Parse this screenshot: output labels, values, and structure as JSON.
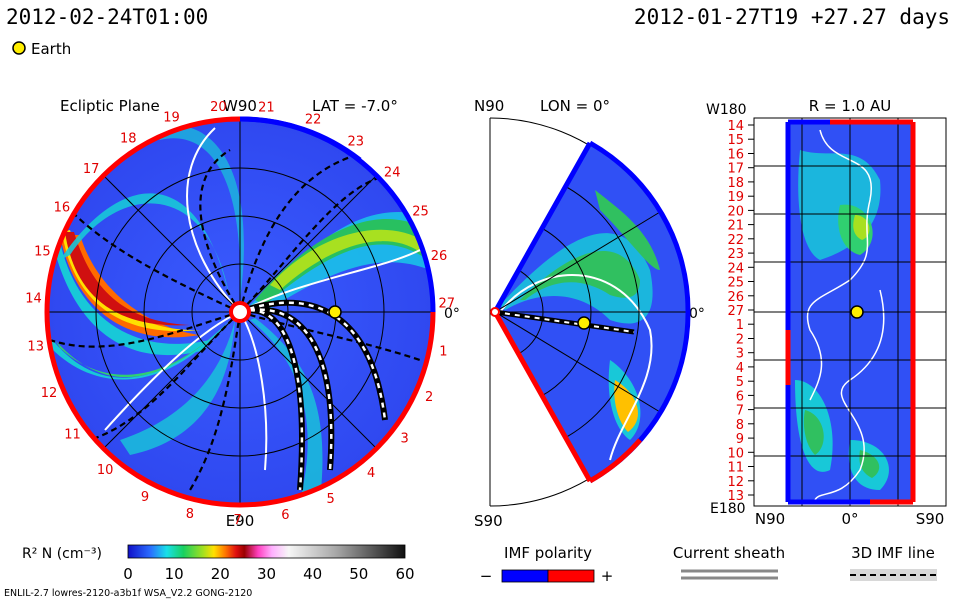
{
  "header": {
    "datetime": "2012-02-24T01:00",
    "run_info": "2012-01-27T19 +27.27 days",
    "earth_legend": "Earth"
  },
  "colors": {
    "earth_marker": "#ffee00",
    "polarity_negative": "#0000ff",
    "polarity_positive": "#ff0000"
  },
  "chart_data": [
    {
      "type": "heatmap",
      "title": "Ecliptic Plane",
      "lat_label": "LAT = -7.0°",
      "top_label": "W90",
      "bottom_label": "E90",
      "right_label": "0°",
      "carrington_ticks": [
        "20",
        "21",
        "22",
        "23",
        "24",
        "25",
        "26",
        "27",
        "1",
        "2",
        "3",
        "4",
        "5",
        "6",
        "7",
        "8",
        "9",
        "10",
        "11",
        "12",
        "13",
        "14",
        "15",
        "16",
        "17",
        "18",
        "19"
      ],
      "earth_marker": true
    },
    {
      "type": "heatmap",
      "title": "LON = 0°",
      "top_label": "N90",
      "bottom_label": "S90",
      "right_label": "0°",
      "earth_marker": true
    },
    {
      "type": "heatmap",
      "title": "R = 1.0 AU",
      "top_left_label": "W180",
      "bottom_left_label": "E180",
      "x_ticks": [
        "N90",
        "0°",
        "S90"
      ],
      "y_ticks": [
        "14",
        "15",
        "16",
        "17",
        "18",
        "19",
        "20",
        "21",
        "22",
        "23",
        "24",
        "25",
        "26",
        "27",
        "1",
        "2",
        "3",
        "4",
        "5",
        "6",
        "7",
        "8",
        "9",
        "10",
        "11",
        "12",
        "13"
      ],
      "earth_marker": true
    }
  ],
  "colorbar": {
    "label": "R² N (cm⁻³)",
    "ticks": [
      "0",
      "10",
      "20",
      "30",
      "40",
      "50",
      "60"
    ],
    "range": [
      0,
      60
    ]
  },
  "legends": {
    "imf_polarity": "IMF polarity",
    "minus": "−",
    "plus": "+",
    "current_sheath": "Current sheath",
    "imf_line": "3D IMF line"
  },
  "footer": {
    "model": "ENLIL-2.7 lowres-2120-a3b1f WSA_V2.2 GONG-2120"
  }
}
